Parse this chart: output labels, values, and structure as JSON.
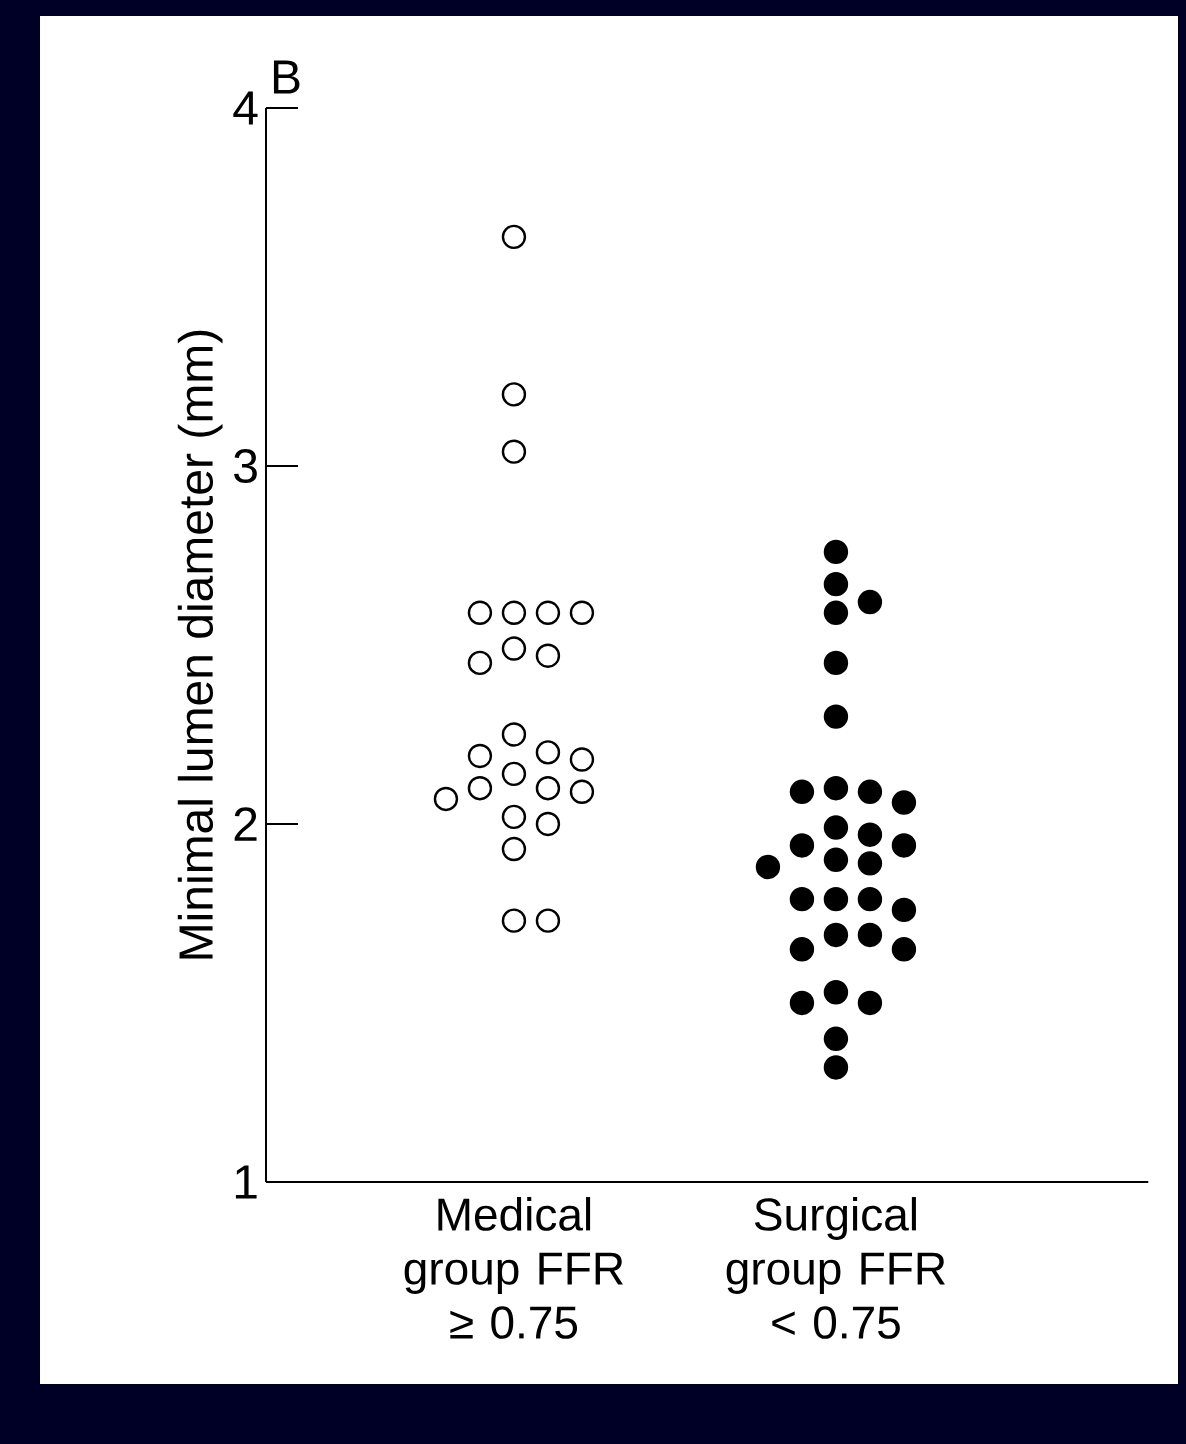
{
  "chart_data": {
    "type": "scatter",
    "title": "B",
    "ylabel": "Minimal lumen diameter (mm)",
    "categories": [
      "Medical group FFR ≥ 0.75",
      "Surgical group FFR < 0.75"
    ],
    "ylim": [
      1,
      4
    ],
    "yticks": [
      1,
      2,
      3,
      4
    ],
    "grid": false,
    "marker": "circle",
    "series": [
      {
        "color": "#ffffff",
        "x": [
          "Medical group FFR ≥ 0.75",
          "Medical group FFR ≥ 0.75",
          "Medical group FFR ≥ 0.75",
          "Medical group FFR ≥ 0.75",
          "Medical group FFR ≥ 0.75",
          "Medical group FFR ≥ 0.75",
          "Medical group FFR ≥ 0.75",
          "Medical group FFR ≥ 0.75",
          "Medical group FFR ≥ 0.75",
          "Medical group FFR ≥ 0.75",
          "Medical group FFR ≥ 0.75",
          "Medical group FFR ≥ 0.75",
          "Medical group FFR ≥ 0.75",
          "Medical group FFR ≥ 0.75",
          "Medical group FFR ≥ 0.75",
          "Medical group FFR ≥ 0.75",
          "Medical group FFR ≥ 0.75",
          "Medical group FFR ≥ 0.75",
          "Medical group FFR ≥ 0.75",
          "Medical group FFR ≥ 0.75",
          "Medical group FFR ≥ 0.75",
          "Medical group FFR ≥ 0.75",
          "Medical group FFR ≥ 0.75",
          "Medical group FFR ≥ 0.75"
        ],
        "values": [
          3.64,
          3.2,
          3.04,
          2.59,
          2.59,
          2.59,
          2.59,
          2.47,
          2.45,
          2.49,
          2.25,
          2.2,
          2.18,
          2.19,
          2.14,
          2.1,
          2.1,
          2.07,
          2.09,
          2.02,
          2.0,
          1.93,
          1.73,
          1.73
        ]
      },
      {
        "color": "#000000",
        "x": [
          "Surgical group FFR < 0.75",
          "Surgical group FFR < 0.75",
          "Surgical group FFR < 0.75",
          "Surgical group FFR < 0.75",
          "Surgical group FFR < 0.75",
          "Surgical group FFR < 0.75",
          "Surgical group FFR < 0.75",
          "Surgical group FFR < 0.75",
          "Surgical group FFR < 0.75",
          "Surgical group FFR < 0.75",
          "Surgical group FFR < 0.75",
          "Surgical group FFR < 0.75",
          "Surgical group FFR < 0.75",
          "Surgical group FFR < 0.75",
          "Surgical group FFR < 0.75",
          "Surgical group FFR < 0.75",
          "Surgical group FFR < 0.75",
          "Surgical group FFR < 0.75",
          "Surgical group FFR < 0.75",
          "Surgical group FFR < 0.75",
          "Surgical group FFR < 0.75",
          "Surgical group FFR < 0.75",
          "Surgical group FFR < 0.75",
          "Surgical group FFR < 0.75",
          "Surgical group FFR < 0.75",
          "Surgical group FFR < 0.75",
          "Surgical group FFR < 0.75",
          "Surgical group FFR < 0.75",
          "Surgical group FFR < 0.75",
          "Surgical group FFR < 0.75"
        ],
        "values": [
          2.76,
          2.67,
          2.62,
          2.59,
          2.45,
          2.3,
          2.09,
          2.06,
          2.1,
          2.09,
          1.99,
          1.97,
          1.94,
          1.94,
          1.89,
          1.88,
          1.9,
          1.79,
          1.79,
          1.76,
          1.79,
          1.69,
          1.69,
          1.65,
          1.65,
          1.53,
          1.5,
          1.5,
          1.4,
          1.32
        ]
      }
    ]
  }
}
